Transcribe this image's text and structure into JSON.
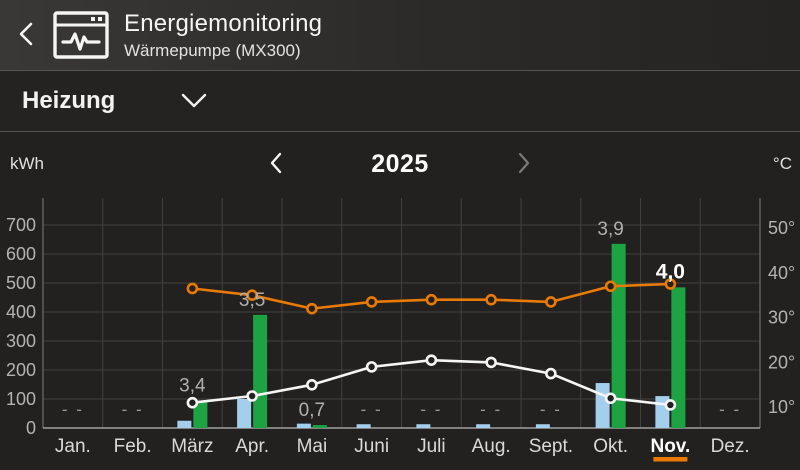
{
  "header": {
    "title": "Energiemonitoring",
    "subtitle": "Wärmepumpe (MX300)",
    "back_icon": "chevron-left-icon",
    "app_icon": "monitoring-window-icon"
  },
  "filter": {
    "label": "Heizung",
    "dropdown_icon": "chevron-down-icon"
  },
  "controls": {
    "left_unit": "kWh",
    "year": "2025",
    "right_unit": "°C",
    "prev_icon": "chevron-left-icon",
    "next_icon": "chevron-right-icon"
  },
  "colors": {
    "background": "#232120",
    "bar_blue": "#a3cfed",
    "bar_green": "#1ea343",
    "line_orange": "#e87a05",
    "line_white": "#f5f5f5",
    "grid": "#424140",
    "axis": "#6f6e6d",
    "baseline": "#a0a0a0",
    "tick_text": "#b3b3b3",
    "month_text": "#d9d9d9",
    "value_text": "#b0b0b0",
    "selected_text": "#ffffff",
    "accent_orange": "#e87a05",
    "dash_text": "#9a9a9a"
  },
  "chart_data": {
    "type": "bar",
    "categories": [
      "Jan.",
      "Feb.",
      "März",
      "Apr.",
      "Mai",
      "Juni",
      "Juli",
      "Aug.",
      "Sept.",
      "Okt.",
      "Nov.",
      "Dez."
    ],
    "selected_month_index": 10,
    "series": [
      {
        "name": "consumed-electricity-kwh",
        "type": "bar",
        "color_key": "bar_blue",
        "values": [
          null,
          null,
          25,
          100,
          15,
          13,
          13,
          13,
          13,
          155,
          110,
          null
        ]
      },
      {
        "name": "generated-heat-kwh",
        "type": "bar",
        "color_key": "bar_green",
        "values": [
          null,
          null,
          95,
          390,
          10,
          null,
          null,
          null,
          null,
          635,
          485,
          null
        ]
      },
      {
        "name": "flow-temperature-c",
        "type": "line",
        "color_key": "line_orange",
        "values": [
          null,
          null,
          36.5,
          35,
          32,
          33.5,
          34,
          34,
          33.5,
          37,
          37.5,
          null
        ]
      },
      {
        "name": "outside-temperature-c",
        "type": "line",
        "color_key": "line_white",
        "values": [
          null,
          null,
          11,
          12.5,
          15,
          19,
          20.5,
          20,
          17.5,
          12,
          10.5,
          null
        ]
      }
    ],
    "efficiency_labels": [
      "- -",
      "- -",
      "3,4",
      "3,5",
      "0,7",
      "- -",
      "- -",
      "- -",
      "- -",
      "3,9",
      "4,0",
      "- -"
    ],
    "left_axis": {
      "unit": "kWh",
      "ticks": [
        0,
        100,
        200,
        300,
        400,
        500,
        600,
        700
      ]
    },
    "right_axis": {
      "unit": "°C",
      "tick_values": [
        10,
        20,
        30,
        40,
        50
      ],
      "tick_suffix": "°"
    },
    "grid": true,
    "legend": "none"
  }
}
